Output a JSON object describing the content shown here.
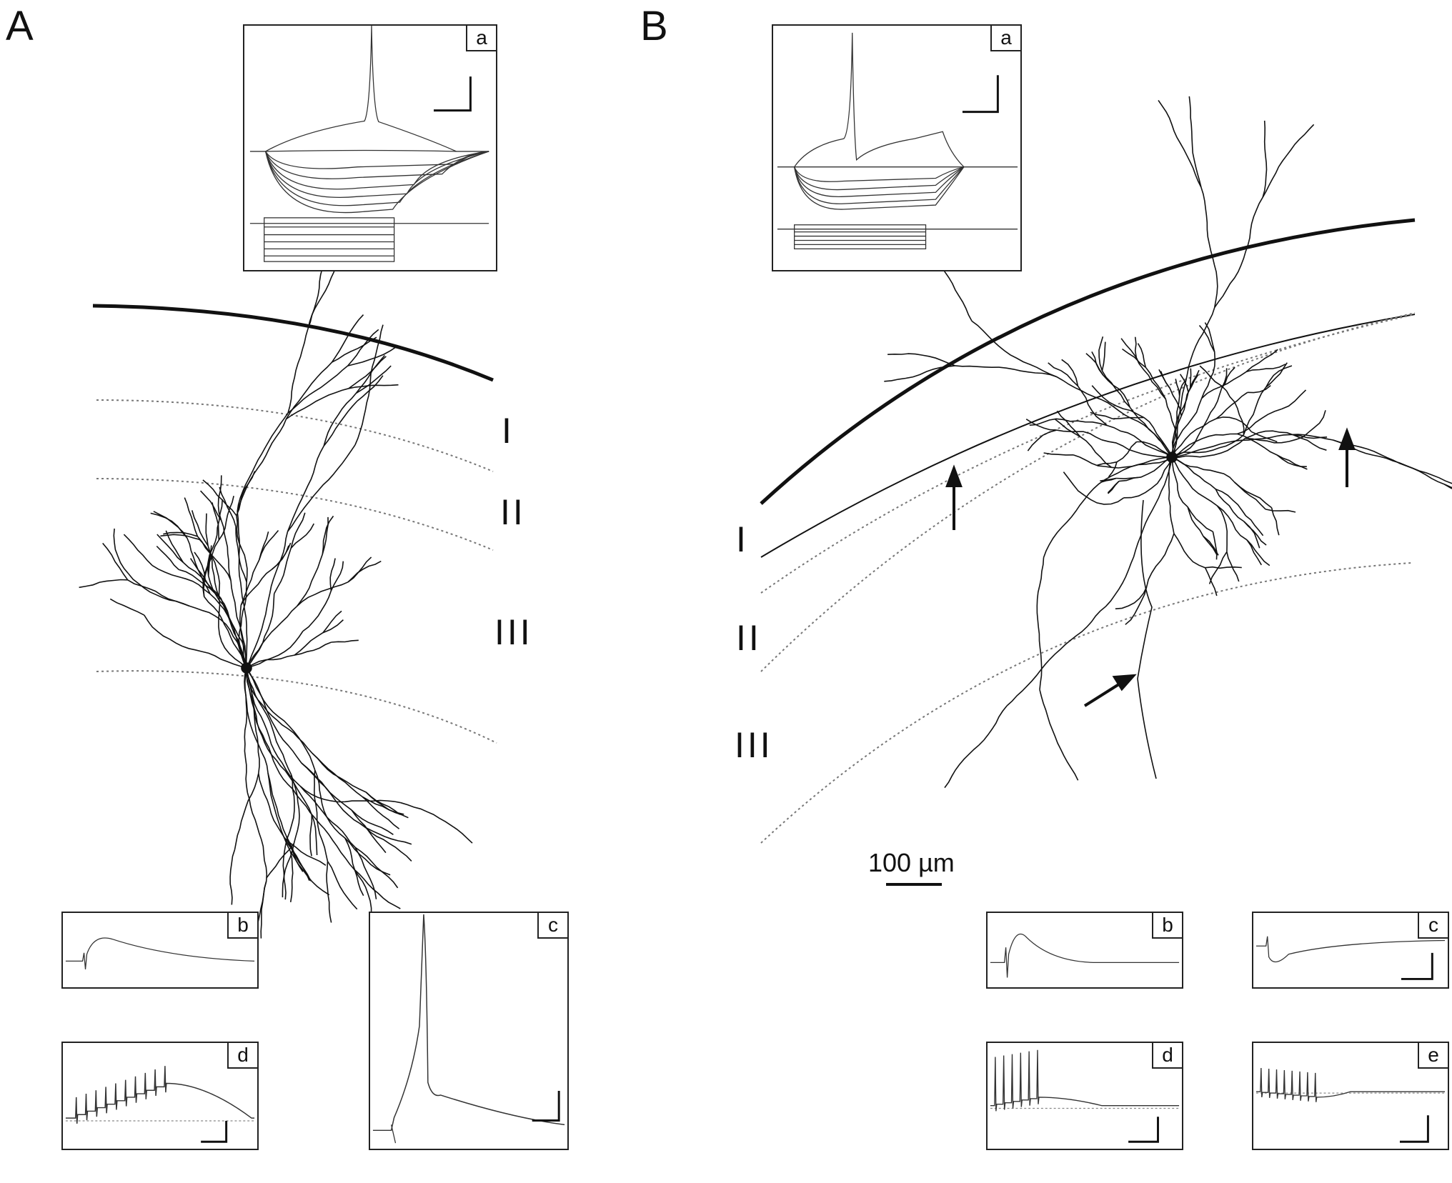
{
  "figure": {
    "panels": [
      {
        "letter": "A",
        "layers": [
          "I",
          "II",
          "III"
        ],
        "insets": [
          "a",
          "b",
          "c",
          "d"
        ]
      },
      {
        "letter": "B",
        "layers": [
          "I",
          "II",
          "III"
        ],
        "insets": [
          "a",
          "b",
          "c",
          "d",
          "e"
        ]
      }
    ],
    "scale_bar_label": "100 µm"
  },
  "colors": {
    "ink": "#111111",
    "trace": "#333333",
    "border": "#222222"
  }
}
